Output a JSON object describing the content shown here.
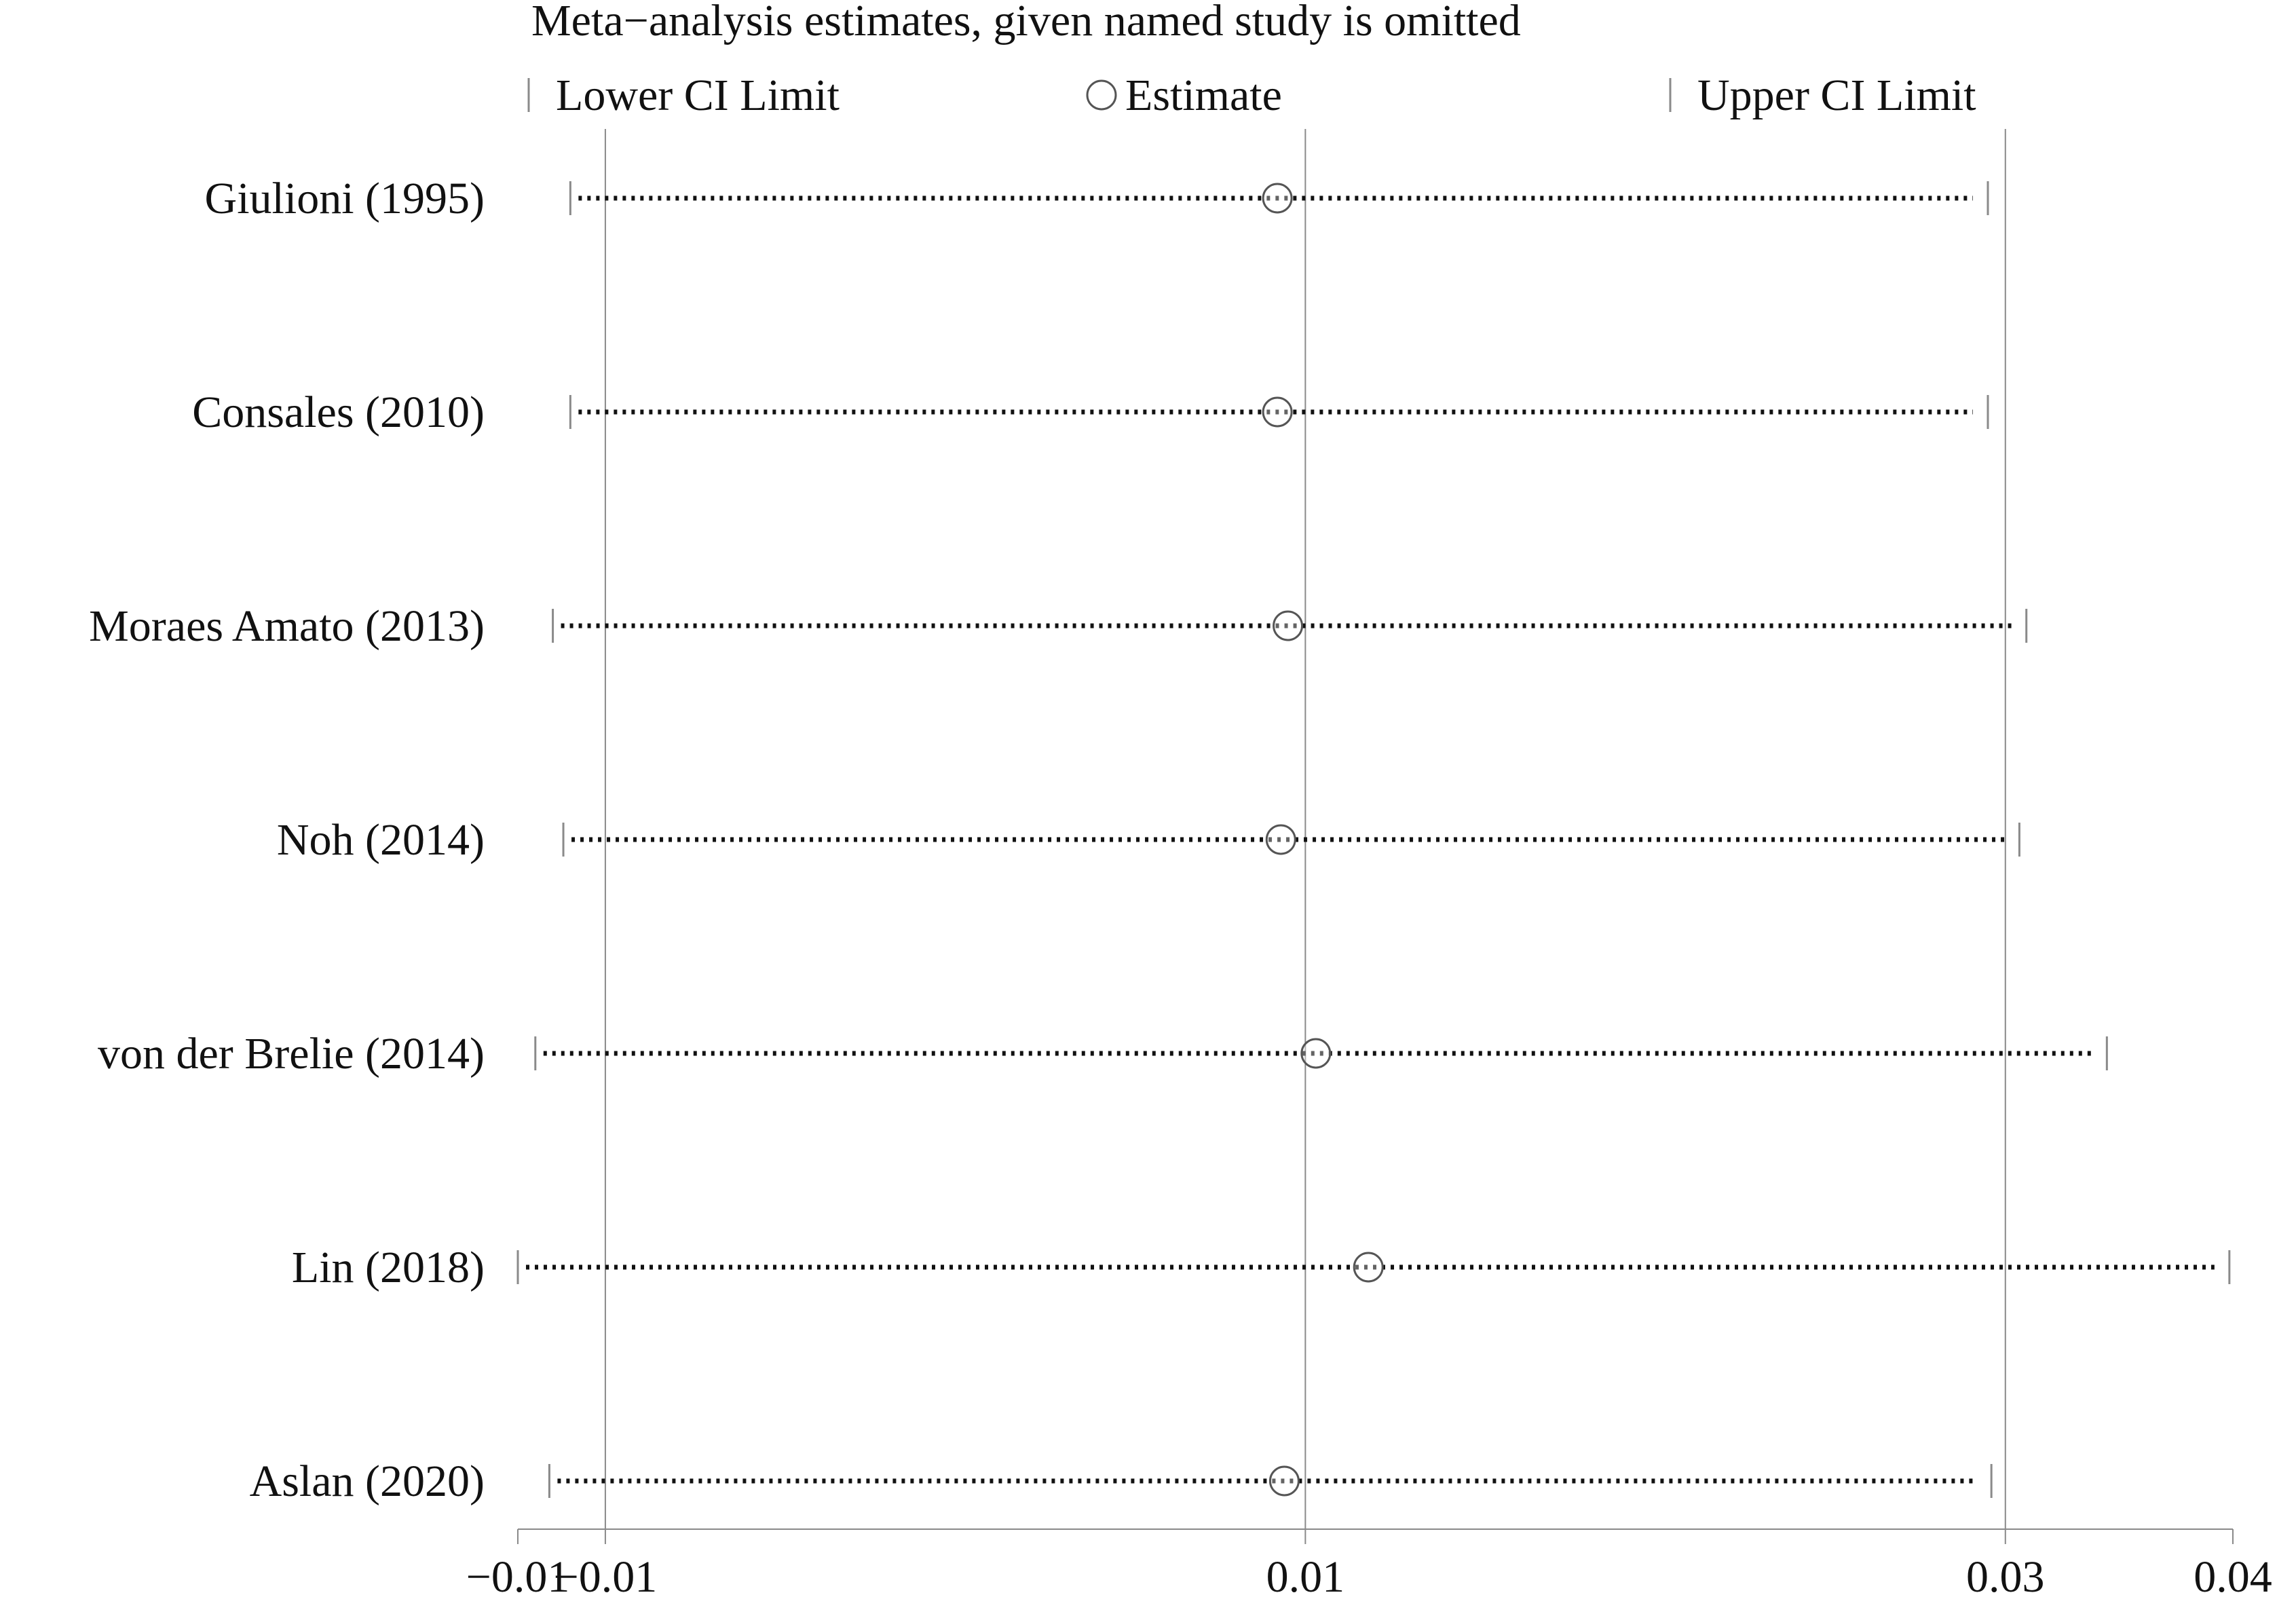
{
  "chart_data": {
    "type": "scatter",
    "title": "Meta−analysis estimates, given named study is omitted",
    "legend": {
      "placement": "top",
      "items": [
        {
          "key": "lower",
          "label": "Lower CI Limit",
          "marker": "tick"
        },
        {
          "key": "estimate",
          "label": "Estimate",
          "marker": "circle"
        },
        {
          "key": "upper",
          "label": "Upper CI Limit",
          "marker": "tick"
        }
      ]
    },
    "studies": [
      {
        "label": "Giulioni (1995)",
        "lower": -0.0105,
        "estimate": 0.0097,
        "upper": 0.03
      },
      {
        "label": "Consales (2010)",
        "lower": -0.0105,
        "estimate": 0.0097,
        "upper": 0.03
      },
      {
        "label": "Moraes Amato (2013)",
        "lower": -0.011,
        "estimate": 0.01,
        "upper": 0.0311
      },
      {
        "label": "Noh (2014)",
        "lower": -0.0107,
        "estimate": 0.0098,
        "upper": 0.0309
      },
      {
        "label": "von der Brelie (2014)",
        "lower": -0.0115,
        "estimate": 0.0108,
        "upper": 0.0334
      },
      {
        "label": "Lin (2018)",
        "lower": -0.012,
        "estimate": 0.0123,
        "upper": 0.0369
      },
      {
        "label": "Aslan (2020)",
        "lower": -0.0111,
        "estimate": 0.0099,
        "upper": 0.0301
      }
    ],
    "x_axis": {
      "range": [
        -0.012,
        0.037
      ],
      "reference_lines": [
        -0.0095,
        0.0105,
        0.0305
      ],
      "ticks": [
        {
          "value": -0.012,
          "label": "−0.01"
        },
        {
          "value": -0.0095,
          "label": "−0.01"
        },
        {
          "value": 0.0105,
          "label": "0.01"
        },
        {
          "value": 0.0305,
          "label": "0.03"
        },
        {
          "value": 0.037,
          "label": "0.04"
        }
      ]
    },
    "grid": false,
    "colors": {
      "line": "#111111",
      "reference": "#8a8a8a",
      "marker": "#555555"
    }
  }
}
